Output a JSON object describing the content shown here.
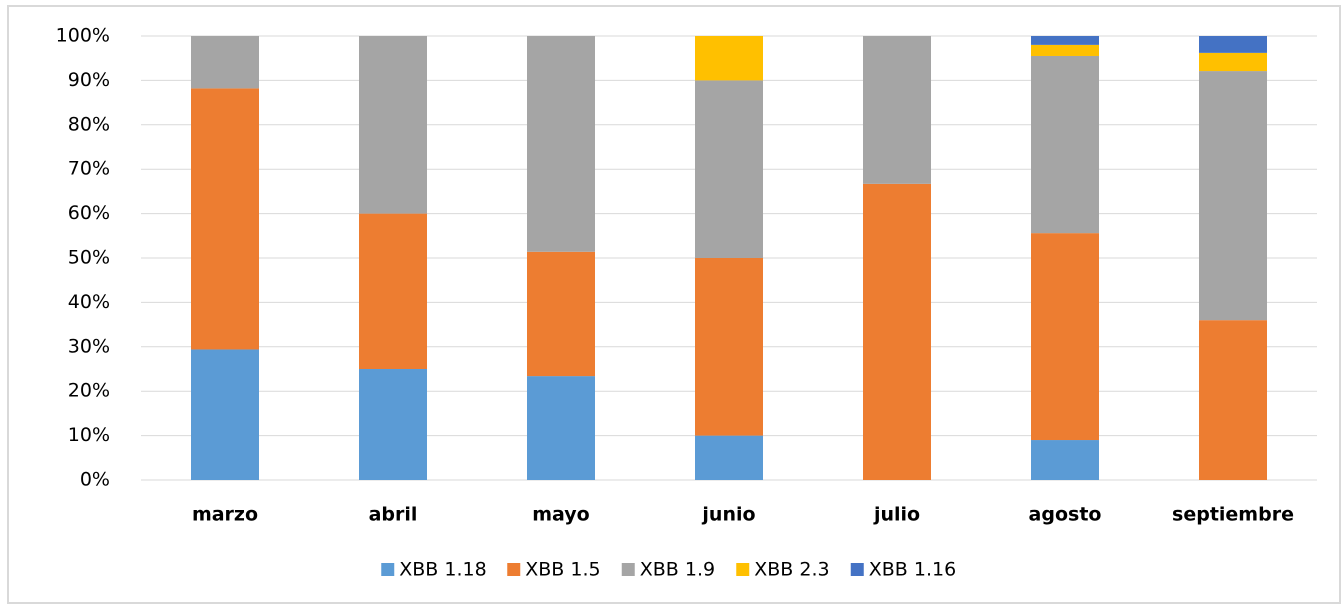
{
  "chart_data": {
    "type": "stacked_bar",
    "categories": [
      "marzo",
      "abril",
      "mayo",
      "junio",
      "julio",
      "agosto",
      "septiembre"
    ],
    "series": [
      {
        "name": "XBB 1.18",
        "color": "#5b9bd5",
        "values": [
          29.4,
          25,
          23.4,
          10,
          0,
          9,
          0
        ]
      },
      {
        "name": "XBB 1.5",
        "color": "#ed7d31",
        "values": [
          58.8,
          35,
          28,
          40,
          66.7,
          46.6,
          36
        ]
      },
      {
        "name": "XBB 1.9",
        "color": "#a5a5a5",
        "values": [
          11.8,
          40,
          48.6,
          40,
          33.3,
          39.9,
          56.1
        ]
      },
      {
        "name": "XBB 2.3",
        "color": "#ffc000",
        "values": [
          0,
          0,
          0,
          10,
          0,
          2.5,
          4.1
        ]
      },
      {
        "name": "XBB 1.16",
        "color": "#4472c4",
        "values": [
          0,
          0,
          0,
          0,
          0,
          2,
          3.8
        ]
      }
    ],
    "ylim": [
      0,
      100
    ],
    "yticks": [
      {
        "value": 0,
        "label": "0%"
      },
      {
        "value": 10,
        "label": "10%"
      },
      {
        "value": 20,
        "label": "20%"
      },
      {
        "value": 30,
        "label": "30%"
      },
      {
        "value": 40,
        "label": "40%"
      },
      {
        "value": 50,
        "label": "50%"
      },
      {
        "value": 60,
        "label": "60%"
      },
      {
        "value": 70,
        "label": "70%"
      },
      {
        "value": 80,
        "label": "80%"
      },
      {
        "value": 90,
        "label": "90%"
      },
      {
        "value": 100,
        "label": "100%"
      }
    ],
    "grid": true
  }
}
